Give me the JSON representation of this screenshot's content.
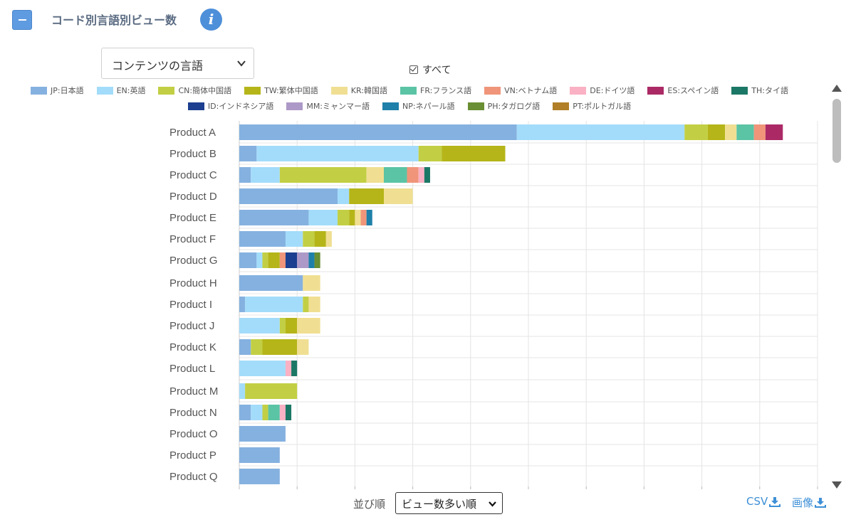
{
  "header": {
    "title": "コード別言語別ビュー数",
    "collapse_icon": "minus-icon",
    "info_icon": "info-icon"
  },
  "controls": {
    "language_select": "コンテンツの言語",
    "all_label": "すべて",
    "sort_label": "並び順",
    "sort_value": "ビュー数多い順",
    "csv_label": "CSV",
    "image_label": "画像"
  },
  "colors": {
    "accent": "#5f9be0",
    "link": "#3d8fd6"
  },
  "chart_data": {
    "type": "bar",
    "orientation": "horizontal",
    "stacked": true,
    "grid": true,
    "legend_position": "top",
    "title": "",
    "xlabel": "",
    "ylabel": "",
    "xlim": [
      0,
      100
    ],
    "categories": [
      "Product A",
      "Product B",
      "Product C",
      "Product D",
      "Product E",
      "Product F",
      "Product G",
      "Product H",
      "Product I",
      "Product J",
      "Product K",
      "Product L",
      "Product M",
      "Product N",
      "Product O",
      "Product P",
      "Product Q"
    ],
    "series": [
      {
        "name": "JP:日本語",
        "color": "#85b1e0",
        "values": [
          48,
          3,
          2,
          17,
          12,
          8,
          3,
          11,
          1,
          0,
          2,
          0,
          0,
          2,
          8,
          7,
          7
        ]
      },
      {
        "name": "EN:英語",
        "color": "#a3dcfa",
        "values": [
          29,
          28,
          5,
          2,
          5,
          3,
          1,
          0,
          10,
          7,
          0,
          8,
          1,
          2,
          0,
          0,
          0
        ]
      },
      {
        "name": "CN:簡体中国語",
        "color": "#c2cf44",
        "values": [
          4,
          4,
          15,
          0,
          2,
          2,
          1,
          0,
          1,
          1,
          2,
          0,
          9,
          1,
          0,
          0,
          0
        ]
      },
      {
        "name": "TW:繁体中国語",
        "color": "#b5b519",
        "values": [
          3,
          11,
          0,
          6,
          1,
          2,
          2,
          0,
          0,
          2,
          6,
          0,
          0,
          0,
          0,
          0,
          0
        ]
      },
      {
        "name": "KR:韓国語",
        "color": "#f0df93",
        "values": [
          2,
          0,
          3,
          5,
          1,
          1,
          0,
          3,
          2,
          4,
          2,
          0,
          0,
          0,
          0,
          0,
          0
        ]
      },
      {
        "name": "FR:フランス語",
        "color": "#5bc4a5",
        "values": [
          3,
          0,
          4,
          0,
          0,
          0,
          0,
          0,
          0,
          0,
          0,
          0,
          0,
          2,
          0,
          0,
          0
        ]
      },
      {
        "name": "VN:ベトナム語",
        "color": "#f0957a",
        "values": [
          2,
          0,
          2,
          0,
          1,
          0,
          1,
          0,
          0,
          0,
          0,
          0,
          0,
          0,
          0,
          0,
          0
        ]
      },
      {
        "name": "DE:ドイツ語",
        "color": "#fab1c3",
        "values": [
          0,
          0,
          1,
          0,
          0,
          0,
          0,
          0,
          0,
          0,
          0,
          1,
          0,
          1,
          0,
          0,
          0
        ]
      },
      {
        "name": "ES:スペイン語",
        "color": "#ab2a66",
        "values": [
          3,
          0,
          0,
          0,
          0,
          0,
          0,
          0,
          0,
          0,
          0,
          0,
          0,
          0,
          0,
          0,
          0
        ]
      },
      {
        "name": "TH:タイ語",
        "color": "#1c7866",
        "values": [
          0,
          0,
          1,
          0,
          0,
          0,
          0,
          0,
          0,
          0,
          0,
          1,
          0,
          1,
          0,
          0,
          0
        ]
      },
      {
        "name": "ID:インドネシア語",
        "color": "#1c3f8f",
        "values": [
          0,
          0,
          0,
          0,
          0,
          0,
          2,
          0,
          0,
          0,
          0,
          0,
          0,
          0,
          0,
          0,
          0
        ]
      },
      {
        "name": "MM:ミャンマー語",
        "color": "#ad99c7",
        "values": [
          0,
          0,
          0,
          0,
          0,
          0,
          2,
          0,
          0,
          0,
          0,
          0,
          0,
          0,
          0,
          0,
          0
        ]
      },
      {
        "name": "NP:ネパール語",
        "color": "#1f80a9",
        "values": [
          0,
          0,
          0,
          0,
          1,
          0,
          1,
          0,
          0,
          0,
          0,
          0,
          0,
          0,
          0,
          0,
          0
        ]
      },
      {
        "name": "PH:タガログ語",
        "color": "#6a8e33",
        "values": [
          0,
          0,
          0,
          0,
          0,
          0,
          1,
          0,
          0,
          0,
          0,
          0,
          0,
          0,
          0,
          0,
          0
        ]
      },
      {
        "name": "PT:ポルトガル語",
        "color": "#b07f27",
        "values": [
          0,
          0,
          0,
          0,
          0,
          0,
          0,
          0,
          0,
          0,
          0,
          0,
          0,
          0,
          0,
          0,
          0
        ]
      }
    ]
  }
}
